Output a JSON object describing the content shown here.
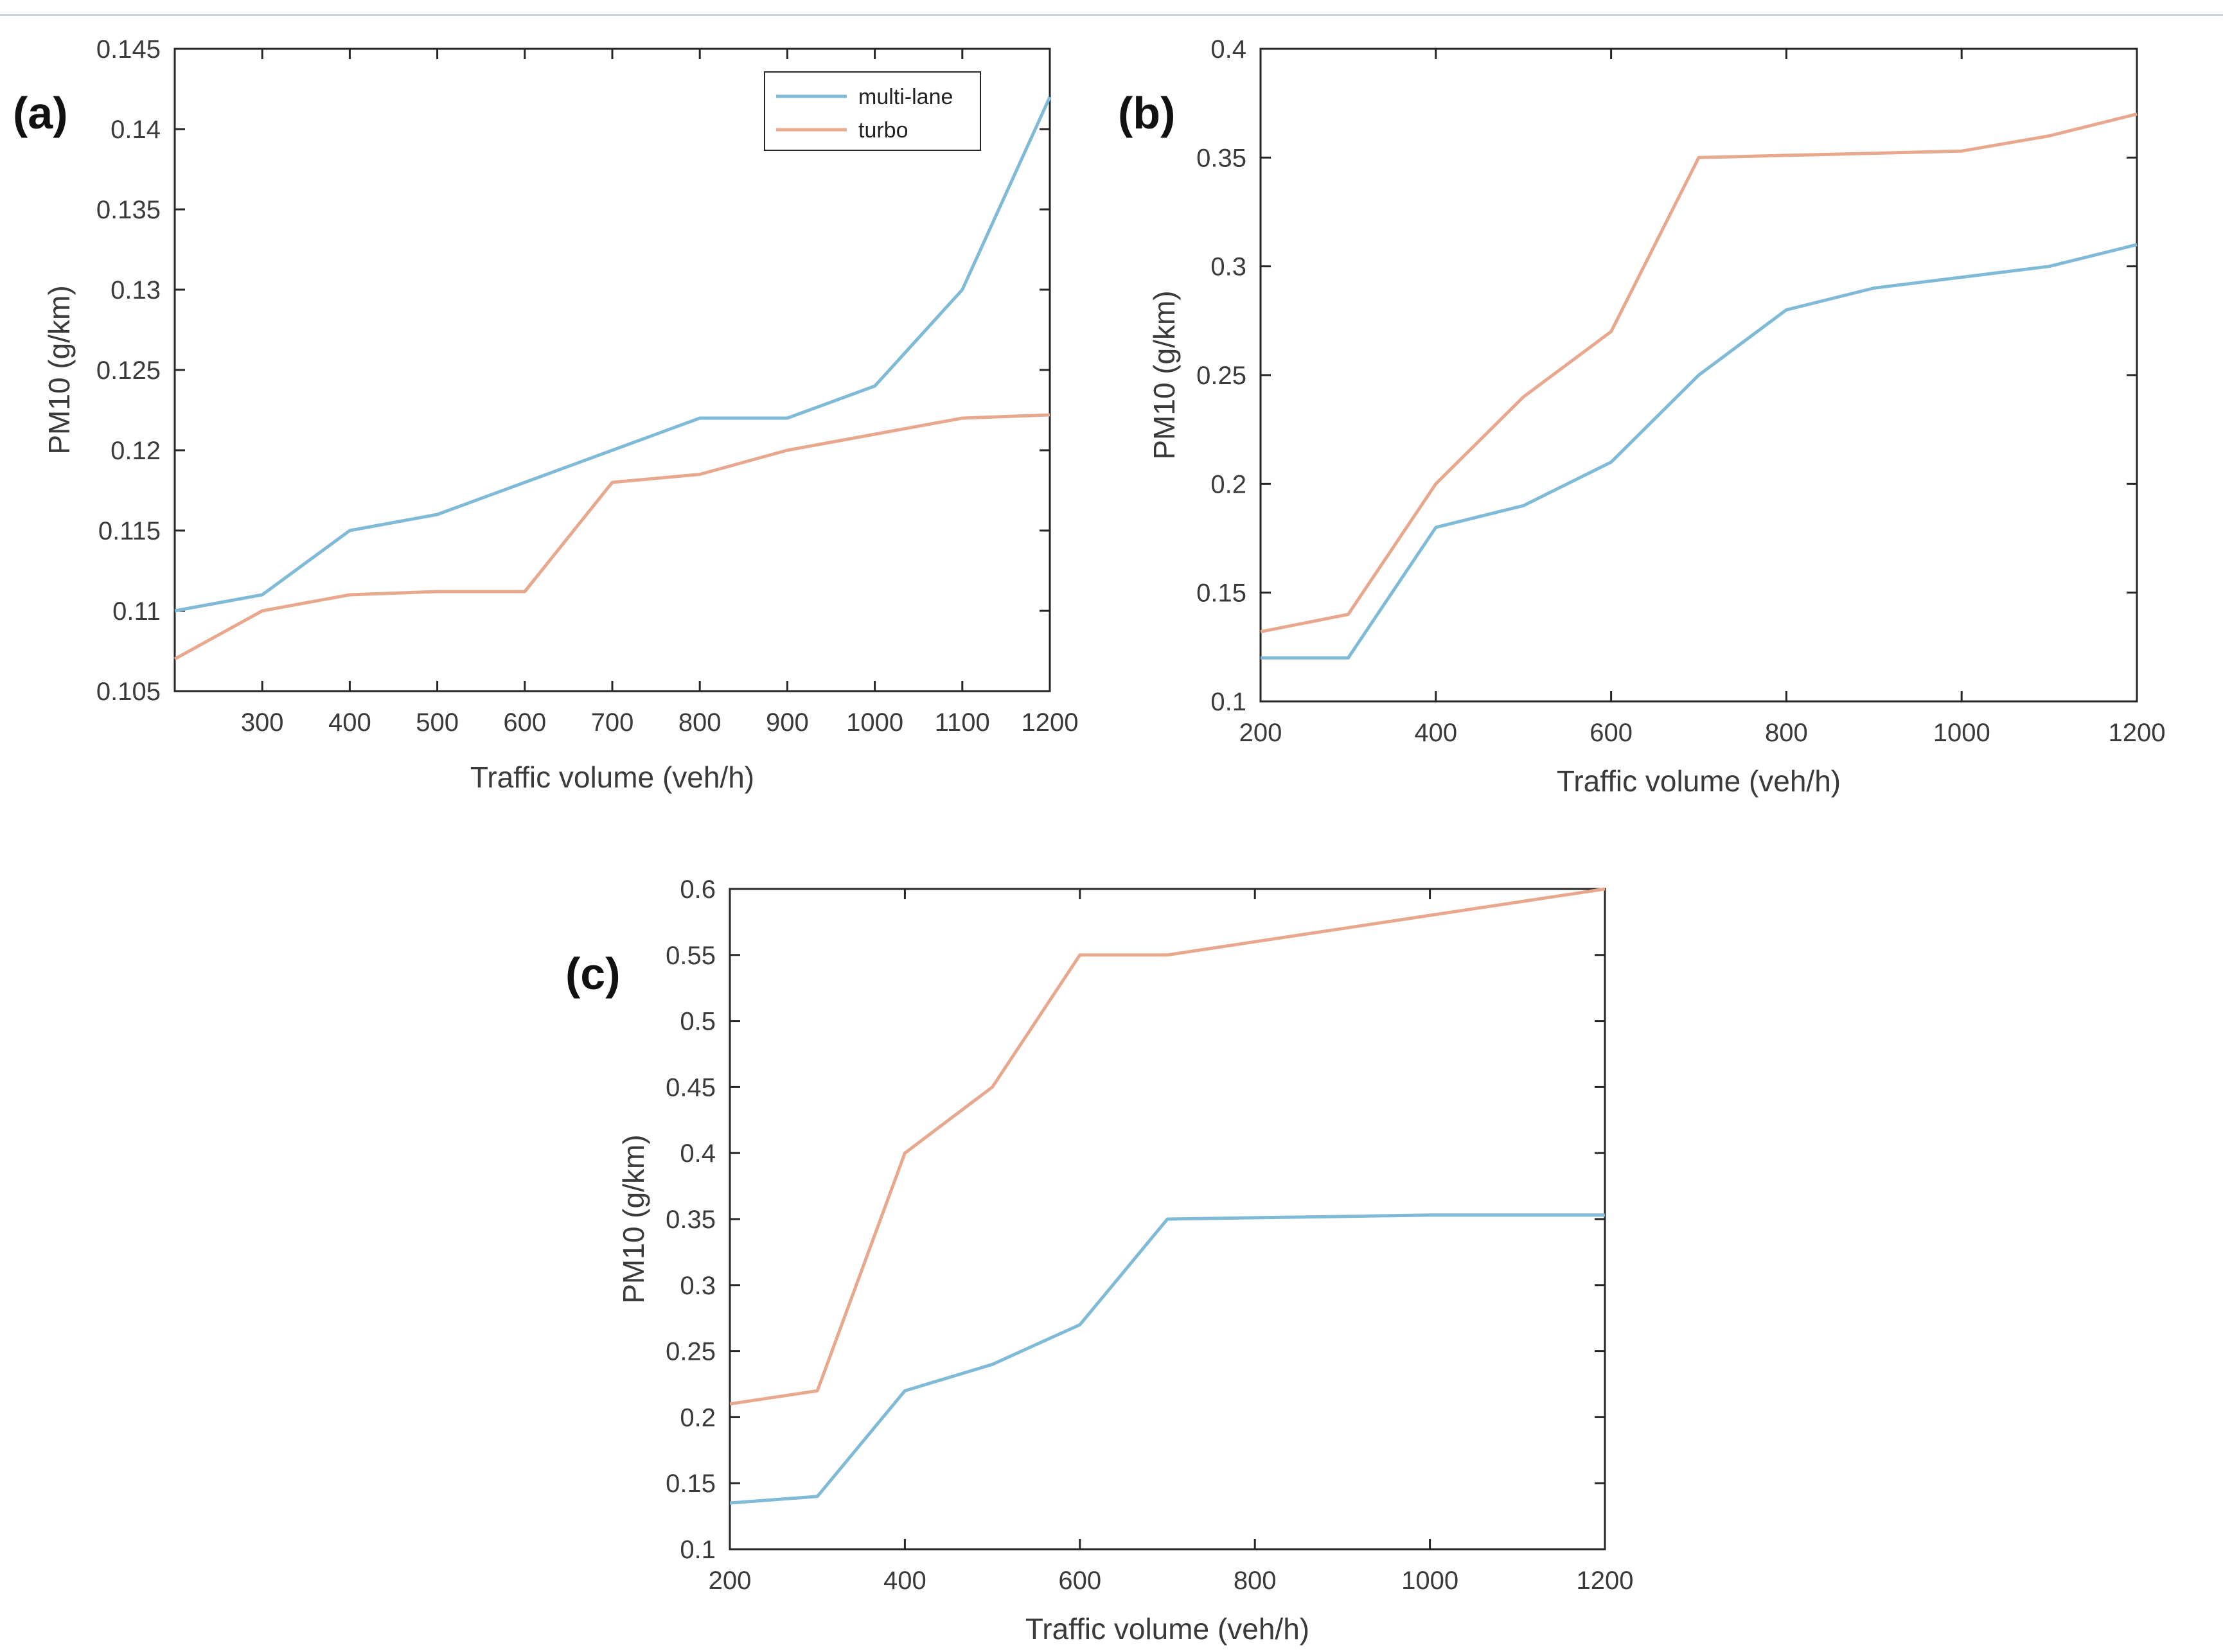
{
  "colors": {
    "multi_lane": "#7fbad6",
    "turbo": "#e7a88e",
    "axis": "#262626",
    "text": "#3a3a3a"
  },
  "chart_data": [
    {
      "panel": "(a)",
      "type": "line",
      "xlabel": "Traffic volume (veh/h)",
      "ylabel": "PM10 (g/km)",
      "xlim": [
        200,
        1200
      ],
      "ylim": [
        0.105,
        0.145
      ],
      "xticks": [
        300,
        400,
        500,
        600,
        700,
        800,
        900,
        1000,
        1100,
        1200
      ],
      "yticks": [
        0.105,
        0.11,
        0.115,
        0.12,
        0.125,
        0.13,
        0.135,
        0.14,
        0.145
      ],
      "legend_position": "top-right",
      "x": [
        200,
        300,
        400,
        500,
        600,
        700,
        800,
        900,
        1000,
        1100,
        1200
      ],
      "series": [
        {
          "name": "multi-lane",
          "values": [
            0.11,
            0.111,
            0.115,
            0.116,
            0.118,
            0.12,
            0.122,
            0.122,
            0.124,
            0.13,
            0.142
          ]
        },
        {
          "name": "turbo",
          "values": [
            0.107,
            0.11,
            0.111,
            0.1112,
            0.1112,
            0.118,
            0.1185,
            0.12,
            0.121,
            0.122,
            0.1222
          ]
        }
      ]
    },
    {
      "panel": "(b)",
      "type": "line",
      "xlabel": "Traffic volume (veh/h)",
      "ylabel": "PM10 (g/km)",
      "xlim": [
        200,
        1200
      ],
      "ylim": [
        0.1,
        0.4
      ],
      "xticks": [
        200,
        400,
        600,
        800,
        1000,
        1200
      ],
      "yticks": [
        0.1,
        0.15,
        0.2,
        0.25,
        0.3,
        0.35,
        0.4
      ],
      "x": [
        200,
        300,
        400,
        500,
        600,
        700,
        800,
        900,
        1000,
        1100,
        1200
      ],
      "series": [
        {
          "name": "multi-lane",
          "values": [
            0.12,
            0.12,
            0.18,
            0.19,
            0.21,
            0.25,
            0.28,
            0.29,
            0.295,
            0.3,
            0.31
          ]
        },
        {
          "name": "turbo",
          "values": [
            0.132,
            0.14,
            0.2,
            0.24,
            0.27,
            0.35,
            0.351,
            0.352,
            0.353,
            0.36,
            0.37
          ]
        }
      ]
    },
    {
      "panel": "(c)",
      "type": "line",
      "xlabel": "Traffic volume (veh/h)",
      "ylabel": "PM10 (g/km)",
      "xlim": [
        200,
        1200
      ],
      "ylim": [
        0.1,
        0.6
      ],
      "xticks": [
        200,
        400,
        600,
        800,
        1000,
        1200
      ],
      "yticks": [
        0.1,
        0.15,
        0.2,
        0.25,
        0.3,
        0.35,
        0.4,
        0.45,
        0.5,
        0.55,
        0.6
      ],
      "x": [
        200,
        300,
        400,
        500,
        600,
        700,
        800,
        900,
        1000,
        1100,
        1200
      ],
      "series": [
        {
          "name": "multi-lane",
          "values": [
            0.135,
            0.14,
            0.22,
            0.24,
            0.27,
            0.35,
            0.351,
            0.352,
            0.353,
            0.353,
            0.353
          ]
        },
        {
          "name": "turbo",
          "values": [
            0.21,
            0.22,
            0.4,
            0.45,
            0.55,
            0.55,
            0.56,
            0.57,
            0.58,
            0.59,
            0.6
          ]
        }
      ]
    }
  ]
}
